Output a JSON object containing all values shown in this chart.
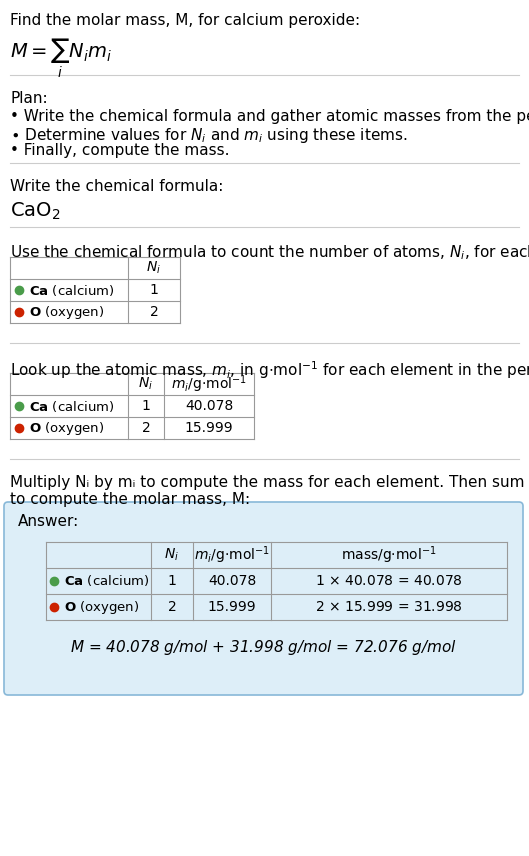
{
  "bg_color": "#ffffff",
  "ca_color": "#4a9c4a",
  "o_color": "#cc2200",
  "answer_box_color": "#ddeef8",
  "answer_box_border": "#88b8d8",
  "title_line1": "Find the molar mass, M, for calcium peroxide:",
  "plan_header": "Plan:",
  "plan_bullet1": "• Write the chemical formula and gather atomic masses from the periodic table.",
  "plan_bullet2_pre": "• Determine values for ",
  "plan_bullet2_mid": " and ",
  "plan_bullet2_post": " using these items.",
  "plan_bullet3": "• Finally, compute the mass.",
  "formula_label": "Write the chemical formula:",
  "count_label_pre": "Use the chemical formula to count the number of atoms, ",
  "count_label_post": ", for each element:",
  "mass_label_pre": "Look up the atomic mass, ",
  "mass_label_post": " for each element in the periodic table:",
  "multiply_label1": "Multiply Nᵢ by mᵢ to compute the mass for each element. Then sum those values",
  "multiply_label2": "to compute the molar mass, M:",
  "answer_label": "Answer:",
  "final_eq": "M = 40.078 g/mol + 31.998 g/mol = 72.076 g/mol",
  "sep_color": "#cccccc",
  "table_line_color": "#999999"
}
